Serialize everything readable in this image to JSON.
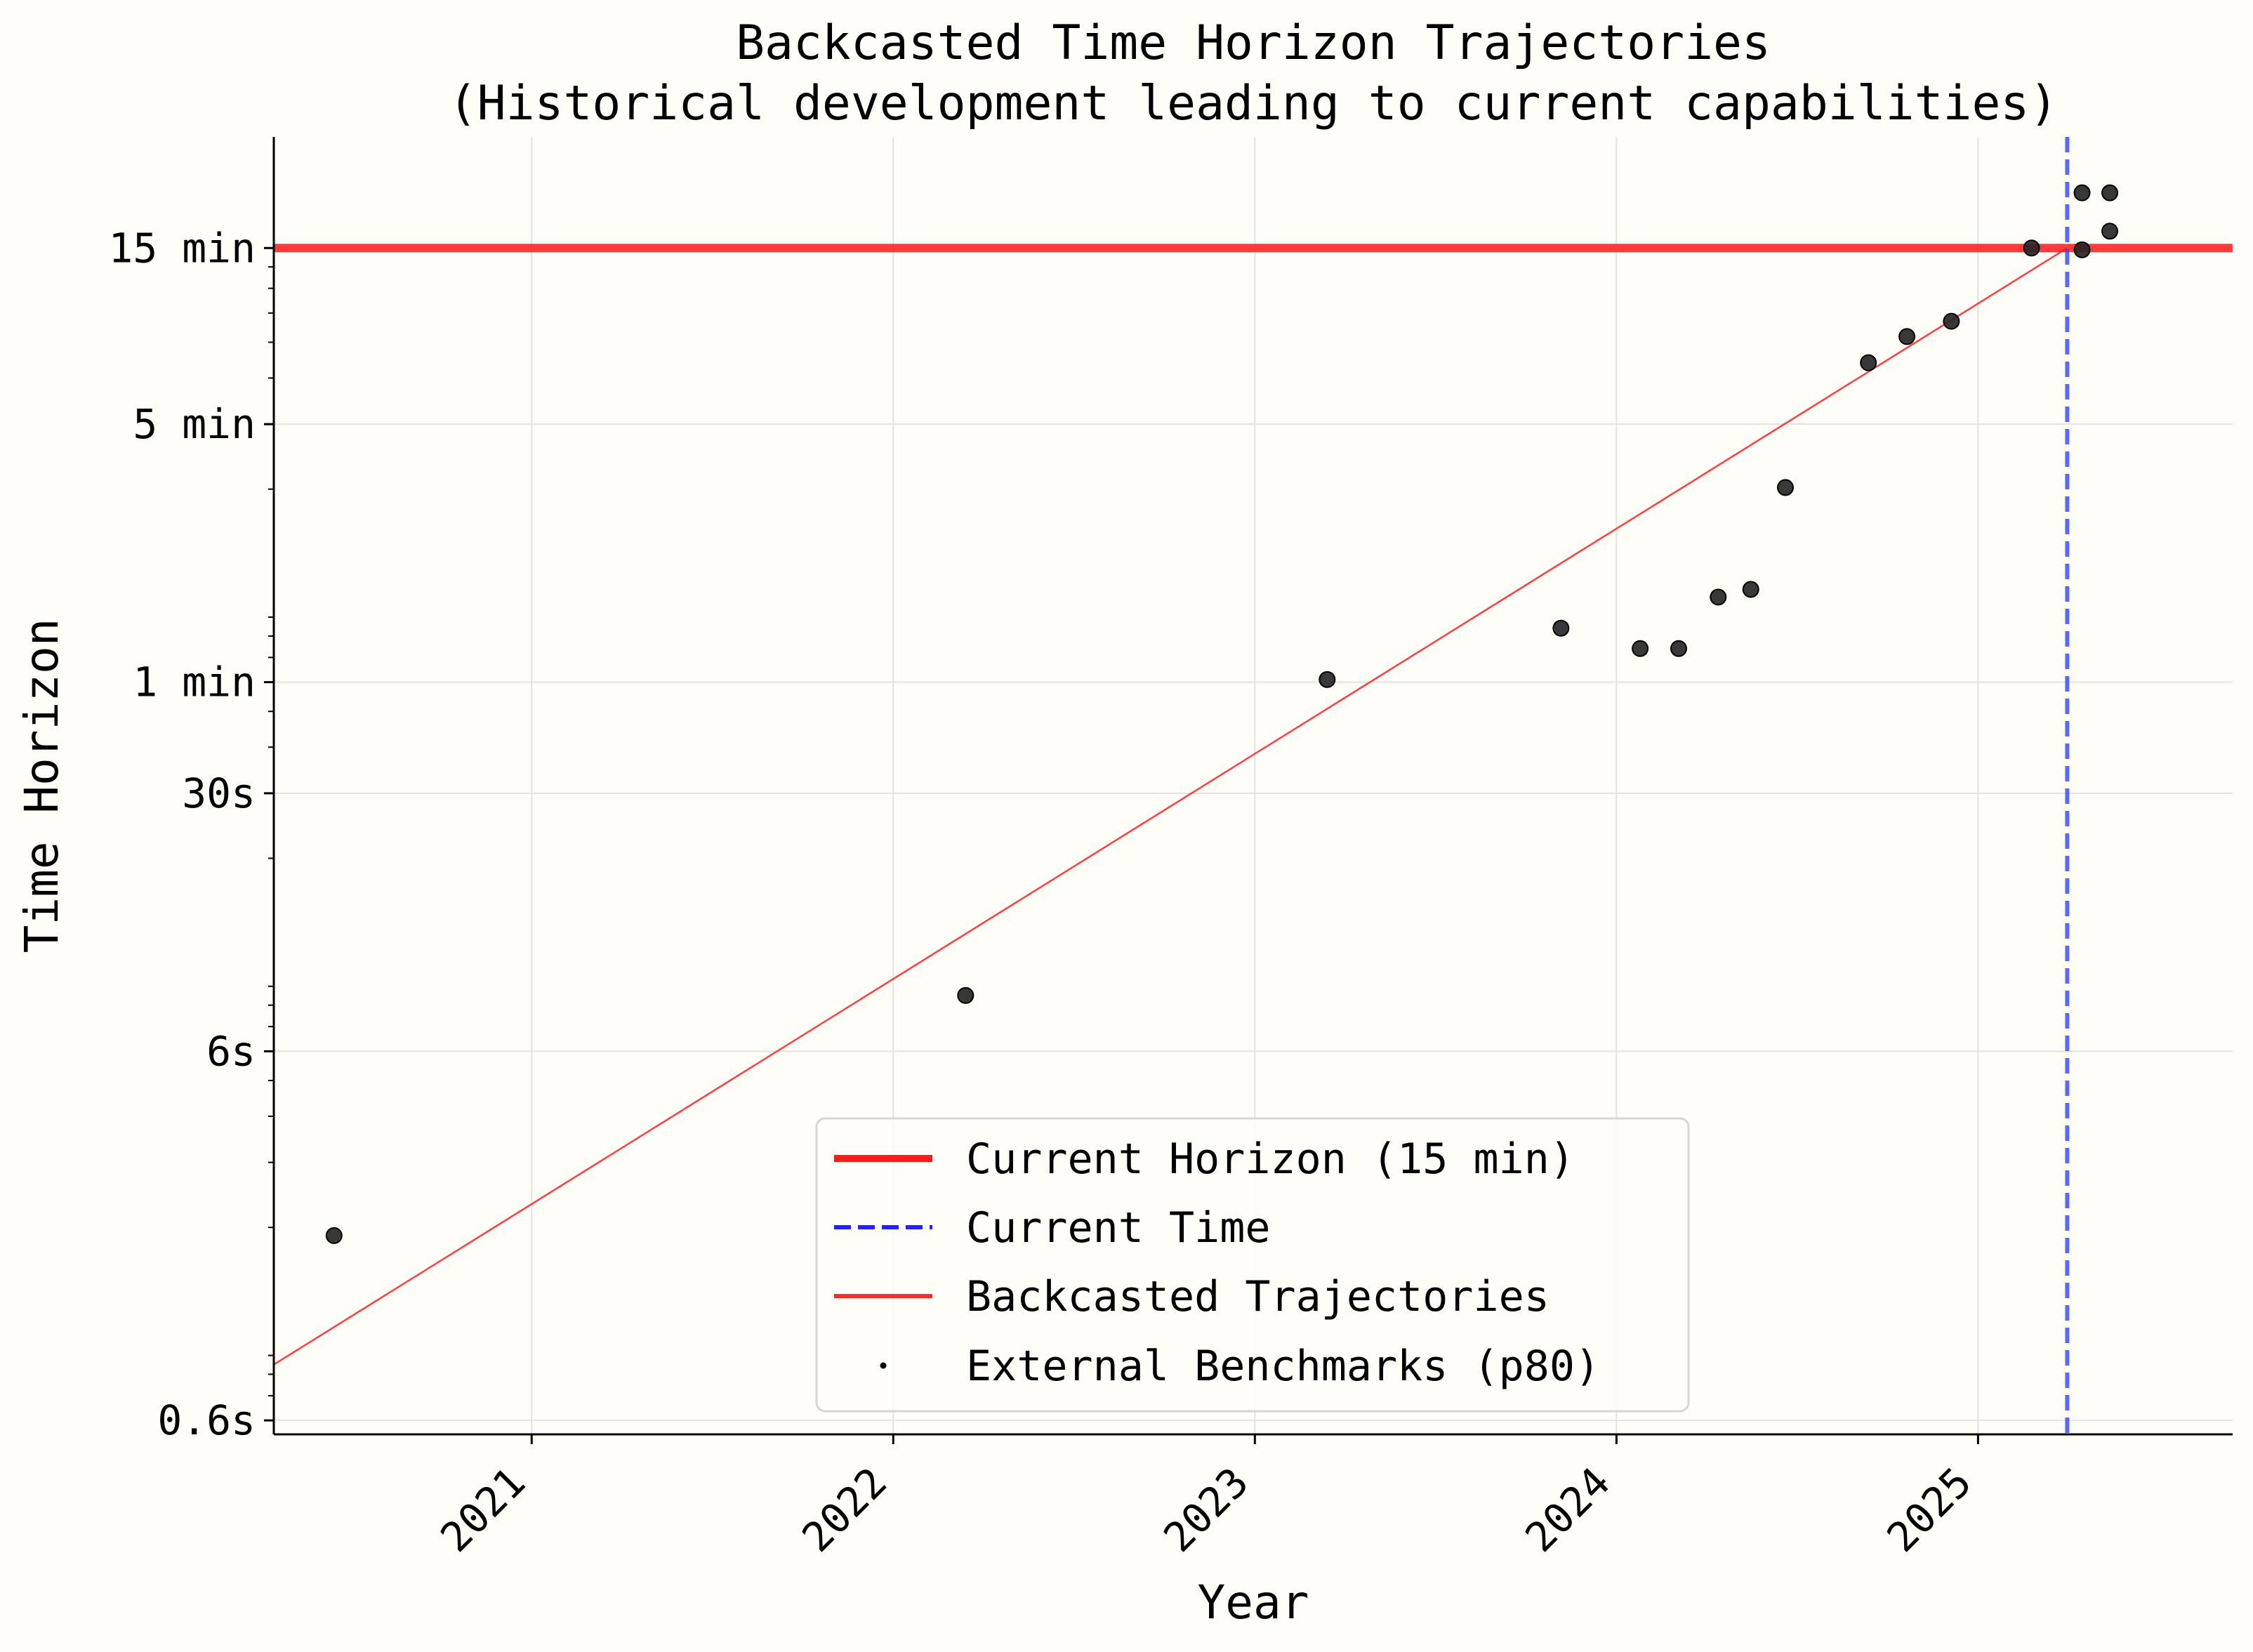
{
  "chart_data": {
    "type": "line",
    "title_line1": "Backcasted Time Horizon Trajectories",
    "title_line2": "(Historical development leading to current capabilities)",
    "xlabel": "Year",
    "ylabel": "Time Horizon",
    "x_scale": "linear (year)",
    "y_scale": "log",
    "xlim": [
      "2020-04-15",
      "2025-09-15"
    ],
    "ylim_seconds": [
      0.55,
      1800
    ],
    "grid": true,
    "legend_position": "bottom-center",
    "x_ticks": [
      {
        "label": "2021",
        "value": "2021-01-01"
      },
      {
        "label": "2022",
        "value": "2022-01-01"
      },
      {
        "label": "2023",
        "value": "2023-01-01"
      },
      {
        "label": "2024",
        "value": "2024-01-01"
      },
      {
        "label": "2025",
        "value": "2025-01-01"
      }
    ],
    "y_ticks": [
      {
        "label": "0.6s",
        "seconds": 0.6
      },
      {
        "label": "6s",
        "seconds": 6
      },
      {
        "label": "30s",
        "seconds": 30
      },
      {
        "label": "1 min",
        "seconds": 60
      },
      {
        "label": "5 min",
        "seconds": 300
      },
      {
        "label": "15 min",
        "seconds": 900
      }
    ],
    "current_horizon": {
      "name": "Current Horizon (15 min)",
      "seconds": 900,
      "color": "#ff1a1a"
    },
    "current_time": {
      "name": "Current Time",
      "date": "2025-04-01",
      "color": "#3344ff"
    },
    "trajectory": {
      "name": "Backcasted Trajectories",
      "color": "#ff2a2a",
      "points": [
        {
          "date": "2020-04-15",
          "seconds": 0.85
        },
        {
          "date": "2025-04-01",
          "seconds": 900
        }
      ]
    },
    "benchmarks": {
      "name": "External Benchmarks (p80)",
      "color": "#222222",
      "points": [
        {
          "date": "2020-06-15",
          "seconds": 1.9
        },
        {
          "date": "2022-03-15",
          "seconds": 8.5
        },
        {
          "date": "2023-03-15",
          "seconds": 61
        },
        {
          "date": "2023-11-06",
          "seconds": 84
        },
        {
          "date": "2024-01-25",
          "seconds": 74
        },
        {
          "date": "2024-03-04",
          "seconds": 74
        },
        {
          "date": "2024-04-13",
          "seconds": 102
        },
        {
          "date": "2024-05-16",
          "seconds": 107
        },
        {
          "date": "2024-06-20",
          "seconds": 202
        },
        {
          "date": "2024-09-12",
          "seconds": 440
        },
        {
          "date": "2024-10-21",
          "seconds": 518
        },
        {
          "date": "2024-12-05",
          "seconds": 570
        },
        {
          "date": "2025-02-24",
          "seconds": 900
        },
        {
          "date": "2025-04-16",
          "seconds": 890
        },
        {
          "date": "2025-04-16",
          "seconds": 1270
        },
        {
          "date": "2025-05-14",
          "seconds": 1270
        },
        {
          "date": "2025-05-14",
          "seconds": 1000
        }
      ]
    }
  }
}
